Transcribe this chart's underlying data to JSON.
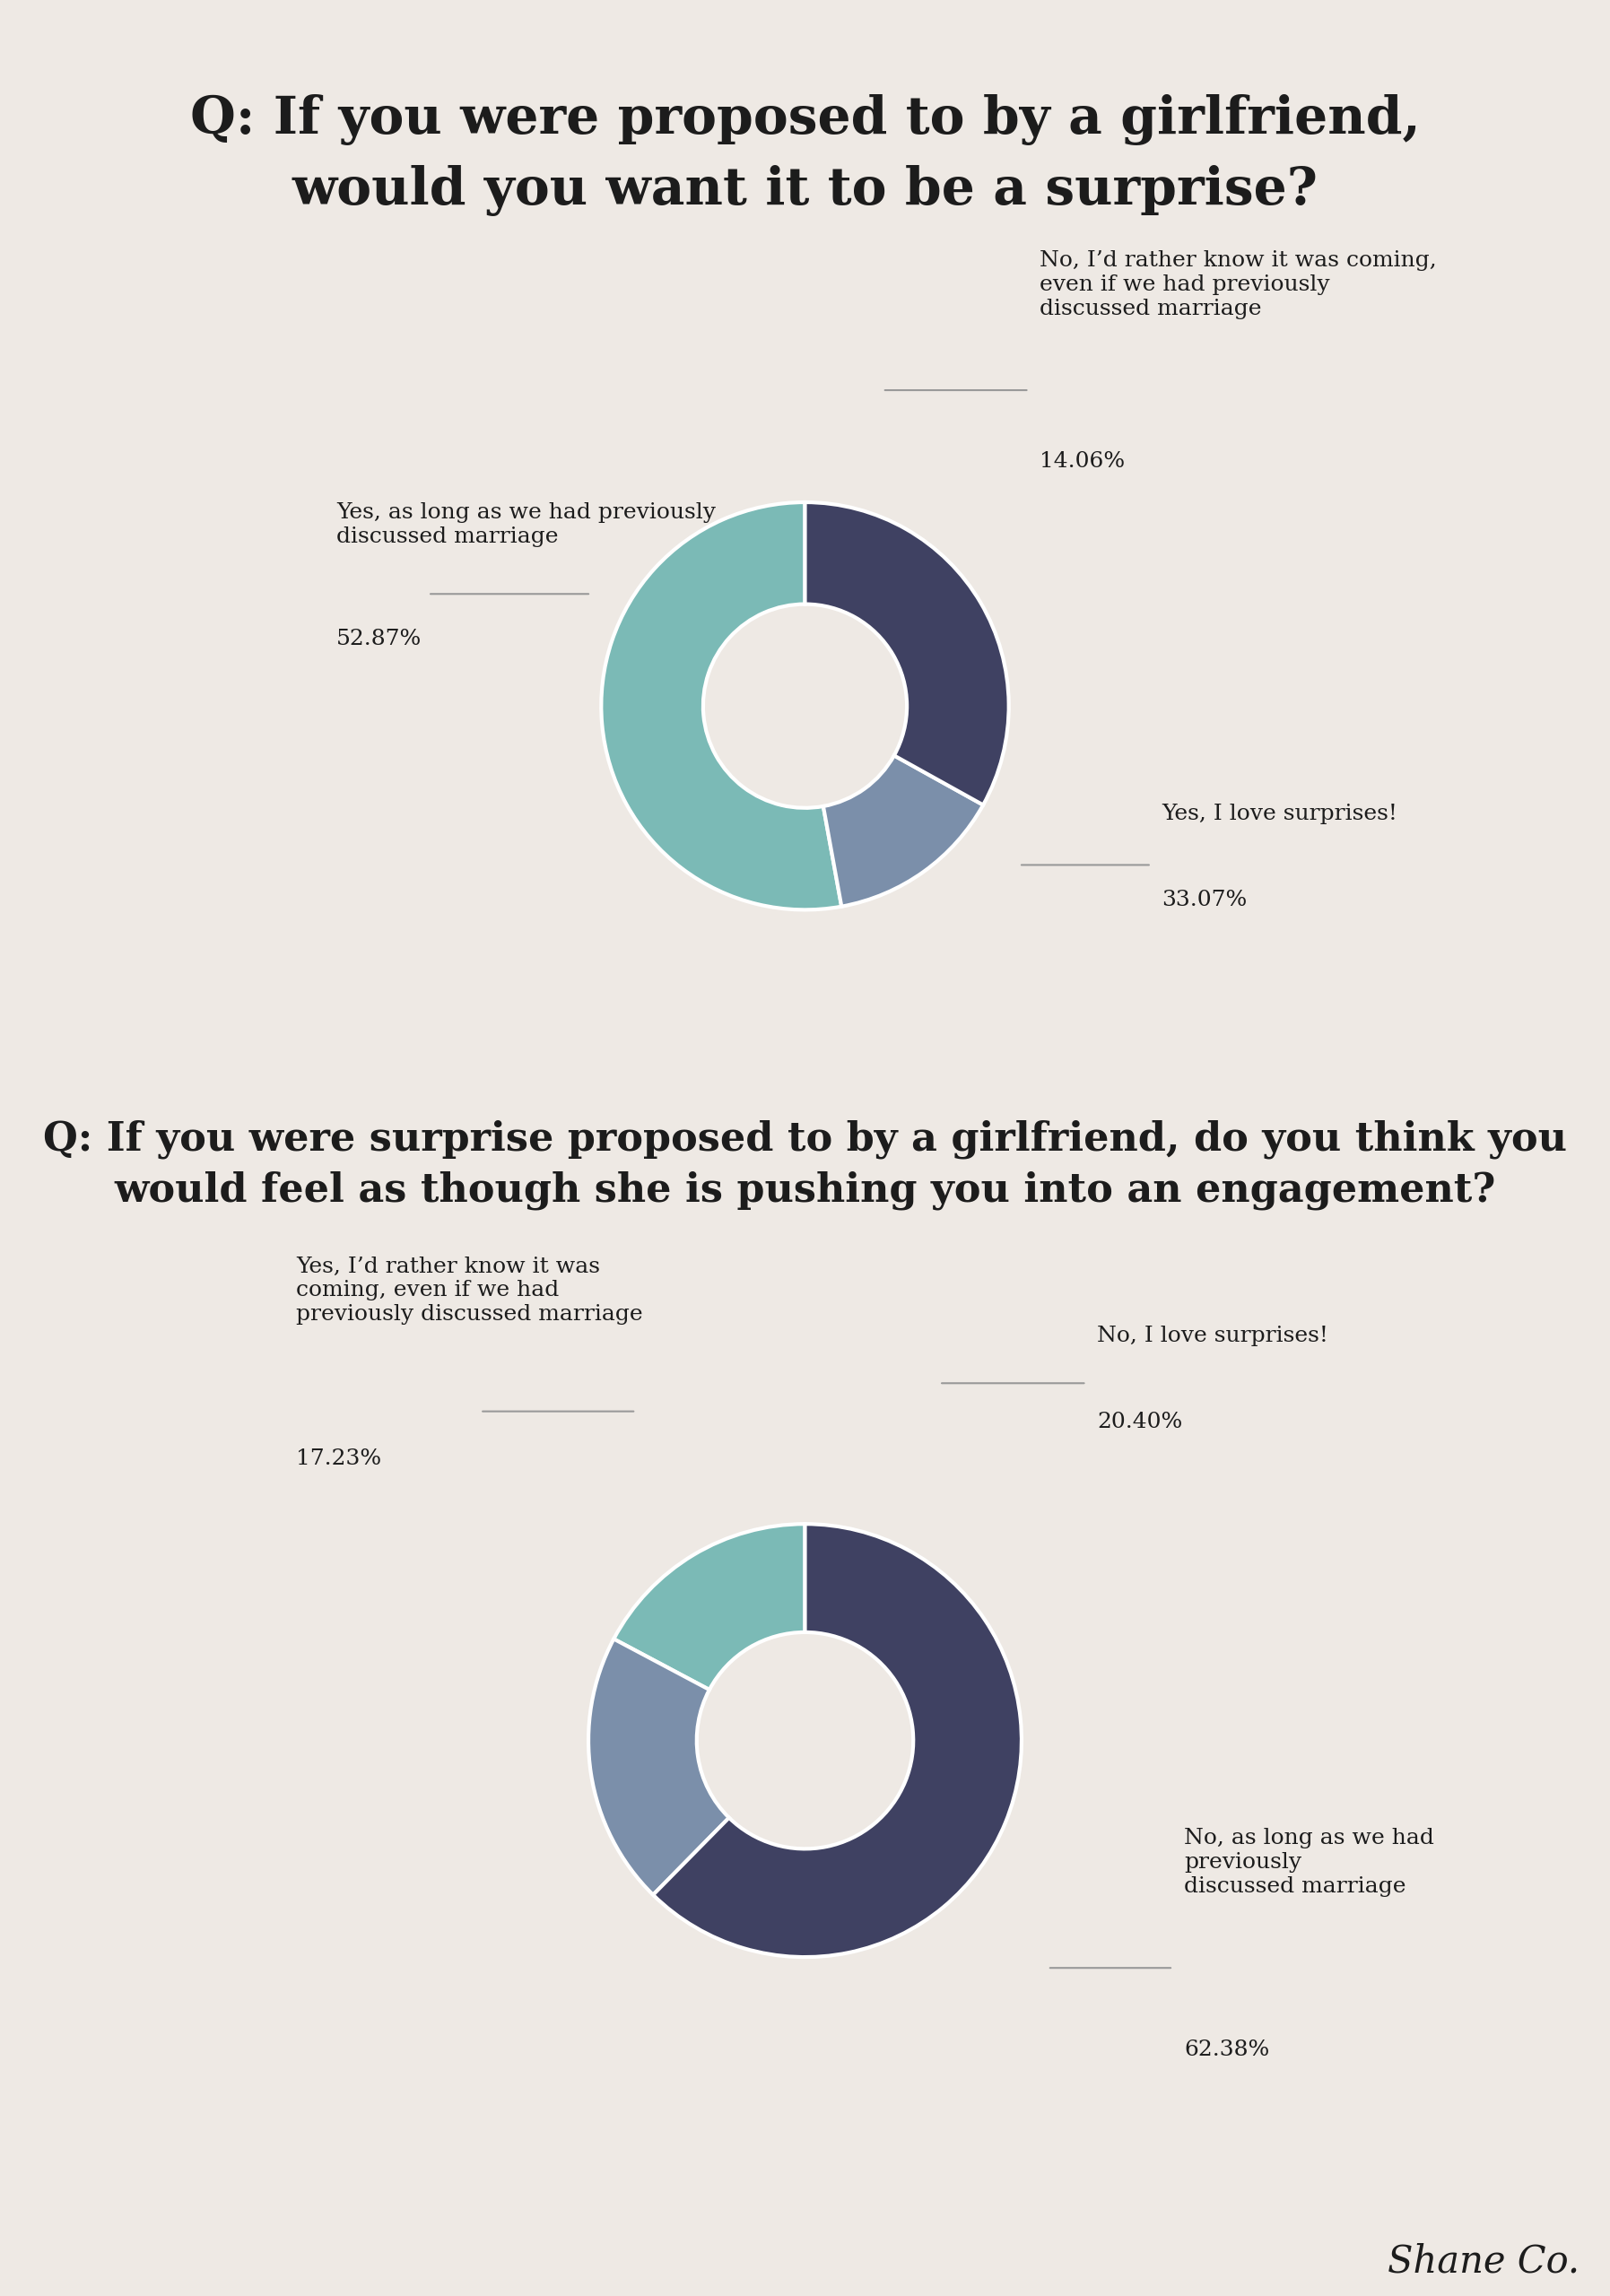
{
  "bg_color": "#eee9e4",
  "bg_color2": "#dcd6cf",
  "title1": "Q: If you were proposed to by a girlfriend,\nwould you want it to be a surprise?",
  "title2": "Q: If you were surprise proposed to by a girlfriend, do you think you\nwould feel as though she is pushing you into an engagement?",
  "chart1": {
    "labels": [
      "Yes, as long as we had previously\ndiscussed marriage",
      "No, I’d rather know it was coming,\neven if we had previously\ndiscussed marriage",
      "Yes, I love surprises!"
    ],
    "values": [
      52.87,
      14.06,
      33.07
    ],
    "colors": [
      "#7bbab6",
      "#7b8faa",
      "#3f4162"
    ],
    "pct_labels": [
      "52.87%",
      "14.06%",
      "33.07%"
    ],
    "startangle": 90,
    "counterclock": true
  },
  "chart2": {
    "labels": [
      "Yes, I’d rather know it was\ncoming, even if we had\npreviously discussed marriage",
      "No, I love surprises!",
      "No, as long as we had\npreviously\ndiscussed marriage"
    ],
    "values": [
      17.23,
      20.4,
      62.38
    ],
    "colors": [
      "#7bbab6",
      "#7b8faa",
      "#3f4162"
    ],
    "pct_labels": [
      "17.23%",
      "20.40%",
      "62.38%"
    ],
    "startangle": 90,
    "counterclock": true
  },
  "brand": "Shane Co.",
  "text_color": "#1c1c1c",
  "line_color": "#999999"
}
